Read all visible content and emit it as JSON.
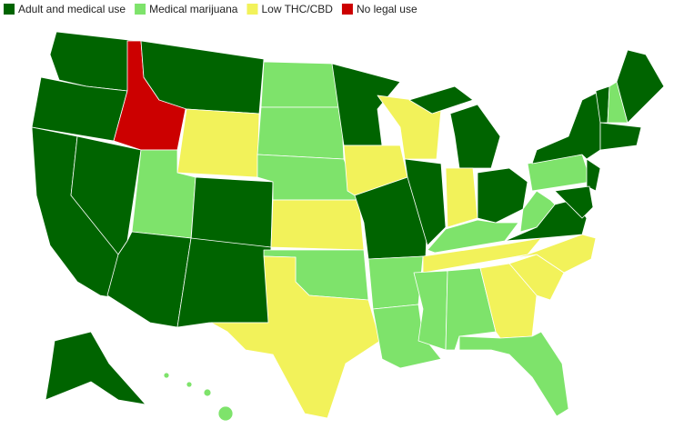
{
  "legend": {
    "items": [
      {
        "label": "Adult and medical use",
        "color": "#006400"
      },
      {
        "label": "Medical marijuana",
        "color": "#7ee36b"
      },
      {
        "label": "Low THC/CBD",
        "color": "#f2f25a"
      },
      {
        "label": "No legal use",
        "color": "#cc0000"
      }
    ]
  }
}
